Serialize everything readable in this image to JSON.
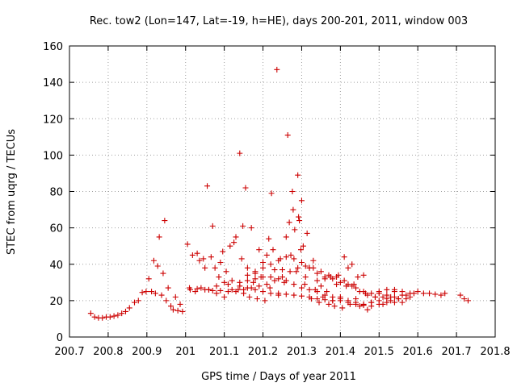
{
  "chart_data": {
    "type": "scatter",
    "title": "Rec. tow2 (Lon=147, Lat=-19, h=HE), days 200-201, 2011, window 003",
    "xlabel": "GPS time / Days of year 2011",
    "ylabel": "STEC from uqrg / TECUs",
    "xlim": [
      200.7,
      201.8
    ],
    "ylim": [
      0,
      160
    ],
    "x_ticks": [
      "200.7",
      "200.8",
      "200.9",
      "201",
      "201.1",
      "201.2",
      "201.3",
      "201.4",
      "201.5",
      "201.6",
      "201.7",
      "201.8"
    ],
    "y_ticks": [
      "0",
      "20",
      "40",
      "60",
      "80",
      "100",
      "120",
      "140",
      "160"
    ],
    "grid": true,
    "marker": "+",
    "marker_color": "#cc0000",
    "series": [
      {
        "points": [
          [
            200.755,
            13
          ],
          [
            200.765,
            11
          ],
          [
            200.775,
            10.5
          ],
          [
            200.785,
            10.5
          ],
          [
            200.795,
            11
          ],
          [
            200.805,
            11
          ],
          [
            200.815,
            11.5
          ],
          [
            200.825,
            12
          ],
          [
            200.835,
            13
          ],
          [
            200.845,
            14
          ],
          [
            200.855,
            16
          ],
          [
            200.868,
            19
          ],
          [
            200.878,
            20
          ],
          [
            200.888,
            24.5
          ],
          [
            200.898,
            25
          ],
          [
            200.905,
            32
          ],
          [
            200.912,
            25
          ],
          [
            200.918,
            42
          ],
          [
            200.922,
            24
          ],
          [
            200.928,
            39
          ],
          [
            200.932,
            55
          ],
          [
            200.938,
            23
          ],
          [
            200.942,
            35
          ],
          [
            200.946,
            64
          ],
          [
            200.95,
            20
          ],
          [
            200.955,
            27
          ],
          [
            200.962,
            17
          ],
          [
            200.968,
            15
          ],
          [
            200.974,
            22
          ],
          [
            200.98,
            14.5
          ],
          [
            200.986,
            18
          ],
          [
            200.992,
            14
          ],
          [
            201.005,
            51
          ],
          [
            201.012,
            26
          ],
          [
            201.018,
            45
          ],
          [
            201.025,
            25
          ],
          [
            201.03,
            46
          ],
          [
            201.036,
            42
          ],
          [
            201.04,
            27
          ],
          [
            201.046,
            43
          ],
          [
            201.05,
            38
          ],
          [
            201.056,
            83
          ],
          [
            201.06,
            26
          ],
          [
            201.066,
            44
          ],
          [
            201.07,
            61
          ],
          [
            201.076,
            38
          ],
          [
            201.08,
            24
          ],
          [
            201.086,
            33
          ],
          [
            201.09,
            41
          ],
          [
            201.096,
            47
          ],
          [
            201.1,
            22
          ],
          [
            201.105,
            36
          ],
          [
            201.11,
            29
          ],
          [
            201.115,
            50
          ],
          [
            201.12,
            26
          ],
          [
            201.125,
            52
          ],
          [
            201.13,
            55
          ],
          [
            201.136,
            26
          ],
          [
            201.14,
            101
          ],
          [
            201.145,
            43
          ],
          [
            201.148,
            61
          ],
          [
            201.15,
            24
          ],
          [
            201.155,
            82
          ],
          [
            201.16,
            38
          ],
          [
            201.165,
            22
          ],
          [
            201.17,
            60
          ],
          [
            201.175,
            30
          ],
          [
            201.18,
            35
          ],
          [
            201.185,
            21
          ],
          [
            201.19,
            48
          ],
          [
            201.195,
            33
          ],
          [
            201.2,
            41
          ],
          [
            201.205,
            20
          ],
          [
            201.21,
            45
          ],
          [
            201.215,
            54
          ],
          [
            201.218,
            27
          ],
          [
            201.222,
            79
          ],
          [
            201.226,
            48
          ],
          [
            201.23,
            37
          ],
          [
            201.236,
            147
          ],
          [
            201.24,
            23
          ],
          [
            201.245,
            43
          ],
          [
            201.25,
            37
          ],
          [
            201.255,
            30
          ],
          [
            201.26,
            55
          ],
          [
            201.264,
            111
          ],
          [
            201.268,
            63
          ],
          [
            201.272,
            45
          ],
          [
            201.276,
            80
          ],
          [
            201.278,
            70
          ],
          [
            201.282,
            59
          ],
          [
            201.286,
            36
          ],
          [
            201.29,
            89
          ],
          [
            201.292,
            66
          ],
          [
            201.294,
            64
          ],
          [
            201.298,
            48
          ],
          [
            201.3,
            75
          ],
          [
            201.304,
            50
          ],
          [
            201.308,
            29
          ],
          [
            201.31,
            33
          ],
          [
            201.314,
            57
          ],
          [
            201.32,
            38
          ],
          [
            201.325,
            21
          ],
          [
            201.33,
            42
          ],
          [
            201.335,
            26
          ],
          [
            201.34,
            31
          ],
          [
            201.345,
            19
          ],
          [
            201.35,
            28
          ],
          [
            201.355,
            22
          ],
          [
            201.36,
            32
          ],
          [
            201.365,
            25
          ],
          [
            201.37,
            18
          ],
          [
            201.375,
            33
          ],
          [
            201.38,
            20
          ],
          [
            201.385,
            17
          ],
          [
            201.39,
            29
          ],
          [
            201.395,
            34
          ],
          [
            201.4,
            22
          ],
          [
            201.405,
            16
          ],
          [
            201.41,
            44
          ],
          [
            201.415,
            28
          ],
          [
            201.42,
            38
          ],
          [
            201.425,
            18
          ],
          [
            201.43,
            40
          ],
          [
            201.435,
            29
          ],
          [
            201.44,
            21
          ],
          [
            201.445,
            33
          ],
          [
            201.45,
            17
          ],
          [
            201.46,
            34
          ],
          [
            201.465,
            24
          ],
          [
            201.47,
            15
          ],
          [
            201.48,
            19
          ],
          [
            201.49,
            22
          ],
          [
            201.5,
            24
          ],
          [
            201.51,
            18
          ],
          [
            201.52,
            23
          ],
          [
            201.53,
            20
          ],
          [
            201.54,
            25
          ],
          [
            201.55,
            21
          ],
          [
            201.56,
            19
          ],
          [
            201.57,
            23
          ],
          [
            201.58,
            22
          ],
          [
            201.59,
            24
          ],
          [
            201.6,
            25
          ],
          [
            201.615,
            24
          ],
          [
            201.63,
            24
          ],
          [
            201.645,
            23.5
          ],
          [
            201.66,
            23
          ],
          [
            201.67,
            24
          ],
          [
            201.71,
            23
          ],
          [
            201.72,
            21
          ],
          [
            201.73,
            20
          ]
        ]
      },
      {
        "points": [
          [
            201.01,
            27
          ],
          [
            201.03,
            26.5
          ],
          [
            201.05,
            26
          ],
          [
            201.07,
            25.5
          ],
          [
            201.09,
            25.5
          ],
          [
            201.11,
            25
          ],
          [
            201.13,
            25
          ],
          [
            201.15,
            26
          ],
          [
            201.17,
            27
          ],
          [
            201.19,
            28
          ],
          [
            201.21,
            29
          ],
          [
            201.23,
            31
          ],
          [
            201.25,
            33
          ],
          [
            201.27,
            36
          ],
          [
            201.29,
            38
          ],
          [
            201.31,
            39
          ],
          [
            201.33,
            38
          ],
          [
            201.35,
            36
          ],
          [
            201.37,
            34
          ],
          [
            201.39,
            33
          ],
          [
            201.41,
            31
          ],
          [
            201.43,
            28
          ],
          [
            201.45,
            25
          ],
          [
            201.47,
            23
          ],
          [
            201.49,
            22
          ],
          [
            201.51,
            22
          ],
          [
            201.53,
            22
          ],
          [
            201.55,
            21
          ],
          [
            201.57,
            21
          ]
        ]
      },
      {
        "points": [
          [
            201.06,
            26
          ],
          [
            201.08,
            28
          ],
          [
            201.1,
            30
          ],
          [
            201.12,
            31
          ],
          [
            201.14,
            30
          ],
          [
            201.16,
            31
          ],
          [
            201.18,
            32
          ],
          [
            201.2,
            33
          ],
          [
            201.22,
            33
          ],
          [
            201.24,
            32
          ],
          [
            201.26,
            31
          ],
          [
            201.28,
            29
          ],
          [
            201.3,
            27
          ],
          [
            201.32,
            26
          ],
          [
            201.34,
            25
          ],
          [
            201.36,
            23
          ],
          [
            201.38,
            22
          ],
          [
            201.4,
            21
          ],
          [
            201.42,
            20
          ],
          [
            201.44,
            19
          ],
          [
            201.46,
            18
          ],
          [
            201.48,
            19
          ],
          [
            201.5,
            20
          ],
          [
            201.52,
            21
          ],
          [
            201.54,
            22
          ],
          [
            201.56,
            23
          ]
        ]
      },
      {
        "points": [
          [
            201.14,
            28
          ],
          [
            201.16,
            27
          ],
          [
            201.18,
            26
          ],
          [
            201.2,
            25
          ],
          [
            201.22,
            24
          ],
          [
            201.24,
            24
          ],
          [
            201.26,
            23.5
          ],
          [
            201.28,
            23
          ],
          [
            201.3,
            22.5
          ],
          [
            201.32,
            22
          ],
          [
            201.34,
            21
          ],
          [
            201.36,
            20.5
          ],
          [
            201.38,
            20
          ],
          [
            201.4,
            20
          ],
          [
            201.42,
            19
          ],
          [
            201.44,
            18
          ],
          [
            201.46,
            17.5
          ],
          [
            201.48,
            17
          ],
          [
            201.5,
            18
          ],
          [
            201.52,
            19
          ],
          [
            201.54,
            19
          ]
        ]
      },
      {
        "points": [
          [
            201.16,
            34
          ],
          [
            201.18,
            36
          ],
          [
            201.2,
            38
          ],
          [
            201.22,
            40
          ],
          [
            201.24,
            42
          ],
          [
            201.26,
            44
          ],
          [
            201.28,
            43
          ],
          [
            201.3,
            41
          ],
          [
            201.32,
            38
          ],
          [
            201.34,
            35
          ],
          [
            201.36,
            33
          ],
          [
            201.38,
            32
          ],
          [
            201.4,
            30
          ],
          [
            201.42,
            29
          ],
          [
            201.44,
            27
          ],
          [
            201.46,
            25
          ],
          [
            201.48,
            24
          ],
          [
            201.5,
            25
          ],
          [
            201.52,
            26
          ],
          [
            201.54,
            26
          ],
          [
            201.56,
            25
          ],
          [
            201.58,
            24
          ]
        ]
      }
    ]
  }
}
